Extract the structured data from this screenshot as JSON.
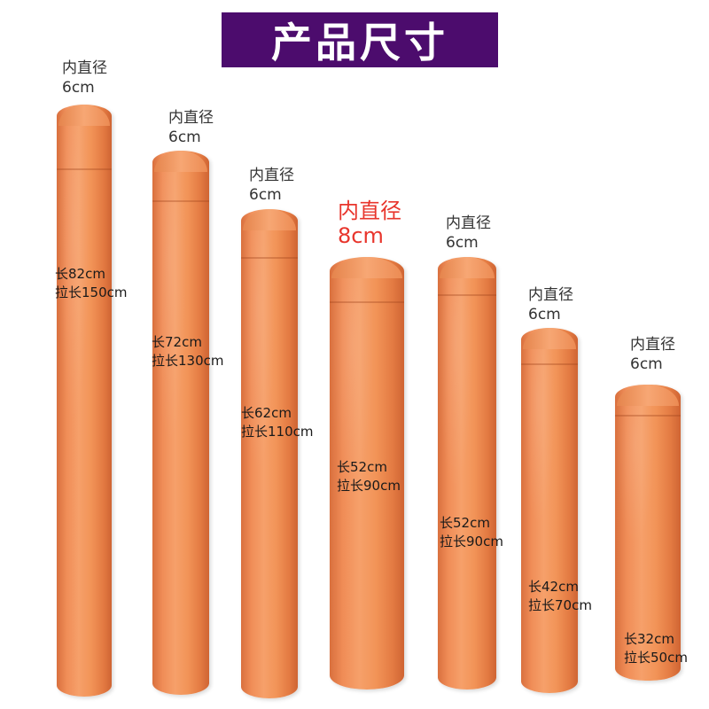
{
  "title": "产品尺寸",
  "colors": {
    "banner": "#4c0c6d",
    "tube": "#f29458",
    "highlight": "#e8352c"
  },
  "tubes": [
    {
      "dia_label": "内直径",
      "dia_value": "6cm",
      "length": "长82cm",
      "extended": "拉长150cm"
    },
    {
      "dia_label": "内直径",
      "dia_value": "6cm",
      "length": "长72cm",
      "extended": "拉长130cm"
    },
    {
      "dia_label": "内直径",
      "dia_value": "6cm",
      "length": "长62cm",
      "extended": "拉长110cm"
    },
    {
      "dia_label": "内直径",
      "dia_value": "8cm",
      "length": "长52cm",
      "extended": "拉长90cm"
    },
    {
      "dia_label": "内直径",
      "dia_value": "6cm",
      "length": "长52cm",
      "extended": "拉长90cm"
    },
    {
      "dia_label": "内直径",
      "dia_value": "6cm",
      "length": "长42cm",
      "extended": "拉长70cm"
    },
    {
      "dia_label": "内直径",
      "dia_value": "6cm",
      "length": "长32cm",
      "extended": "拉长50cm"
    }
  ]
}
